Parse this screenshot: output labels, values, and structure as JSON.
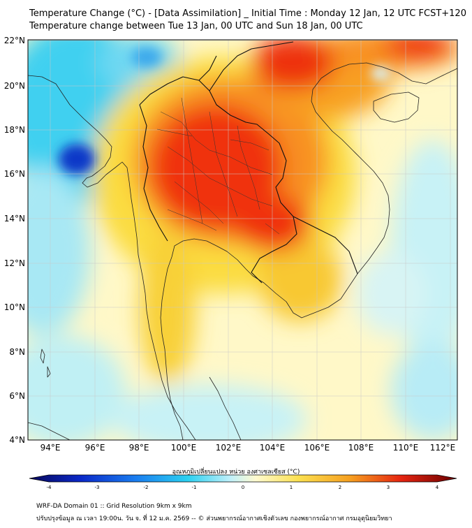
{
  "title_line1": "Temperature Change (°C) - [Data Assimilation] _ Initial Time : Monday 12 Jan, 12 UTC FCST+120",
  "title_line2": "Temperature change between Tue 13 Jan, 00 UTC and Sun 18 Jan, 00 UTC",
  "lat_labels": [
    "22°N",
    "20°N",
    "18°N",
    "16°N",
    "14°N",
    "12°N",
    "10°N",
    "8°N",
    "6°N",
    "4°N"
  ],
  "lon_labels": [
    "94°E",
    "96°E",
    "98°E",
    "100°E",
    "102°E",
    "104°E",
    "106°E",
    "108°E",
    "110°E",
    "112°E"
  ],
  "colorbar": {
    "title": "อุณหภูมิเปลี่ยนแปลง หน่วย องศาเซลเซียส (°C)",
    "ticks": [
      "-4",
      "-3",
      "-2",
      "-1",
      "0",
      "1",
      "2",
      "3",
      "4"
    ],
    "min": -4,
    "max": 4
  },
  "footer_line1": "WRF-DA Domain 01 :: Grid Resolution 9km x 9km",
  "footer_line2": "ปรับปรุงข้อมูล ณ เวลา 19:00น. วัน จ. ที่ 12 ม.ค. 2569 -- © ส่วนพยากรณ์อากาศเชิงตัวเลข กองพยากรณ์อากาศ กรมอุตุนิยมวิทยา",
  "colors": {
    "cold_max": "#0018a8",
    "cold": "#1ec8ee",
    "neutral": "#fffde0",
    "warm": "#f7c520",
    "hot": "#f03010",
    "hot_max": "#800000",
    "land_border": "#202020"
  }
}
